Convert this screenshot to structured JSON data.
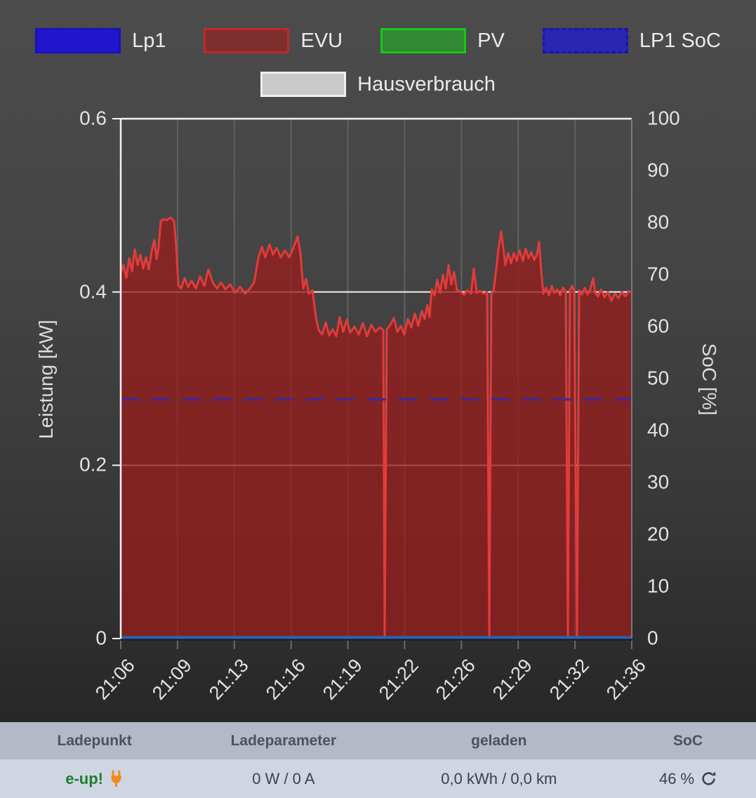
{
  "legend": {
    "rows": [
      [
        {
          "label": "Lp1",
          "fill": "#2116cd",
          "border": "#1a10bd",
          "border_style": "solid"
        },
        {
          "label": "EVU",
          "fill": "#7e2e2c",
          "border": "#bd2b27",
          "border_style": "solid"
        },
        {
          "label": "PV",
          "fill": "#2f8a33",
          "border": "#17c819",
          "border_style": "solid"
        },
        {
          "label": "LP1 SoC",
          "fill": "#2a26b4",
          "border": "#1b17a6",
          "border_style": "dashed"
        }
      ],
      [
        {
          "label": "Hausverbrauch",
          "fill": "#c9c9c9",
          "border": "#efefef",
          "border_style": "solid"
        }
      ]
    ]
  },
  "chart_data": {
    "type": "line",
    "title": "",
    "ylabel_left": "Leistung [kW]",
    "ylabel_right": "SoC [%]",
    "y_left": {
      "min": 0,
      "max": 0.6,
      "tick_labels": [
        "0.6",
        "0.4",
        "0.2",
        "0"
      ],
      "tick_values": [
        0.6,
        0.4,
        0.2,
        0
      ],
      "white_gridlines": [
        0.4,
        0.2
      ]
    },
    "y_right": {
      "min": 0,
      "max": 100,
      "tick_values": [
        100,
        90,
        80,
        70,
        60,
        50,
        40,
        30,
        20,
        10,
        0
      ]
    },
    "x_labels": [
      "21:06",
      "21:09",
      "21:13",
      "21:16",
      "21:19",
      "21:22",
      "21:26",
      "21:29",
      "21:32",
      "21:36"
    ],
    "grid": true,
    "legend_position": "top",
    "style": {
      "vgrid": "#616161",
      "white_line": "#f3efee",
      "top_border": "#f3f3f3",
      "left_border": "#f3f3f3",
      "right_border": "#7a7a7a",
      "tick": "#6a6a6a",
      "baseline": "#1c1c1c"
    },
    "series": [
      {
        "name": "EVU",
        "kind": "area-line",
        "axis": "left",
        "unit": "kW",
        "color": "#e23b3b",
        "fill": "rgba(150,30,30,0.78)",
        "points": [
          [
            0,
            0.423
          ],
          [
            0.0055,
            0.431
          ],
          [
            0.011,
            0.416
          ],
          [
            0.0165,
            0.439
          ],
          [
            0.022,
            0.424
          ],
          [
            0.0275,
            0.449
          ],
          [
            0.033,
            0.431
          ],
          [
            0.0385,
            0.443
          ],
          [
            0.044,
            0.427
          ],
          [
            0.0495,
            0.44
          ],
          [
            0.0549,
            0.426
          ],
          [
            0.0604,
            0.447
          ],
          [
            0.0659,
            0.46
          ],
          [
            0.07,
            0.438
          ],
          [
            0.0742,
            0.452
          ],
          [
            0.0783,
            0.482
          ],
          [
            0.0838,
            0.484
          ],
          [
            0.0907,
            0.483
          ],
          [
            0.0975,
            0.486
          ],
          [
            0.1044,
            0.482
          ],
          [
            0.1085,
            0.452
          ],
          [
            0.1126,
            0.408
          ],
          [
            0.1181,
            0.404
          ],
          [
            0.125,
            0.416
          ],
          [
            0.1319,
            0.406
          ],
          [
            0.1387,
            0.413
          ],
          [
            0.147,
            0.404
          ],
          [
            0.1552,
            0.418
          ],
          [
            0.1634,
            0.407
          ],
          [
            0.1717,
            0.426
          ],
          [
            0.1799,
            0.411
          ],
          [
            0.1882,
            0.404
          ],
          [
            0.1964,
            0.411
          ],
          [
            0.2047,
            0.403
          ],
          [
            0.2143,
            0.409
          ],
          [
            0.2239,
            0.399
          ],
          [
            0.2335,
            0.406
          ],
          [
            0.2431,
            0.398
          ],
          [
            0.2527,
            0.404
          ],
          [
            0.261,
            0.411
          ],
          [
            0.2692,
            0.439
          ],
          [
            0.2761,
            0.452
          ],
          [
            0.283,
            0.44
          ],
          [
            0.2912,
            0.455
          ],
          [
            0.2981,
            0.443
          ],
          [
            0.3049,
            0.451
          ],
          [
            0.3132,
            0.44
          ],
          [
            0.3214,
            0.448
          ],
          [
            0.3297,
            0.44
          ],
          [
            0.3379,
            0.451
          ],
          [
            0.3462,
            0.464
          ],
          [
            0.3516,
            0.444
          ],
          [
            0.3571,
            0.404
          ],
          [
            0.3626,
            0.415
          ],
          [
            0.3681,
            0.398
          ],
          [
            0.375,
            0.402
          ],
          [
            0.3819,
            0.371
          ],
          [
            0.3874,
            0.356
          ],
          [
            0.3942,
            0.351
          ],
          [
            0.4011,
            0.365
          ],
          [
            0.408,
            0.35
          ],
          [
            0.4148,
            0.357
          ],
          [
            0.4217,
            0.349
          ],
          [
            0.4286,
            0.371
          ],
          [
            0.4354,
            0.354
          ],
          [
            0.4423,
            0.368
          ],
          [
            0.4491,
            0.353
          ],
          [
            0.4574,
            0.36
          ],
          [
            0.4656,
            0.351
          ],
          [
            0.4739,
            0.364
          ],
          [
            0.4821,
            0.349
          ],
          [
            0.4904,
            0.362
          ],
          [
            0.4986,
            0.354
          ],
          [
            0.5069,
            0.359
          ],
          [
            0.5137,
            0.356
          ],
          [
            0.5165,
            0.003
          ],
          [
            0.5206,
            0.357
          ],
          [
            0.5275,
            0.362
          ],
          [
            0.5343,
            0.37
          ],
          [
            0.5412,
            0.354
          ],
          [
            0.548,
            0.361
          ],
          [
            0.5549,
            0.351
          ],
          [
            0.5618,
            0.369
          ],
          [
            0.5686,
            0.359
          ],
          [
            0.5755,
            0.375
          ],
          [
            0.5824,
            0.361
          ],
          [
            0.5892,
            0.378
          ],
          [
            0.5947,
            0.369
          ],
          [
            0.6002,
            0.385
          ],
          [
            0.6044,
            0.371
          ],
          [
            0.6085,
            0.403
          ],
          [
            0.614,
            0.396
          ],
          [
            0.6195,
            0.414
          ],
          [
            0.625,
            0.399
          ],
          [
            0.6305,
            0.42
          ],
          [
            0.636,
            0.404
          ],
          [
            0.6415,
            0.431
          ],
          [
            0.647,
            0.409
          ],
          [
            0.6525,
            0.423
          ],
          [
            0.658,
            0.402
          ],
          [
            0.6648,
            0.4
          ],
          [
            0.6717,
            0.397
          ],
          [
            0.6785,
            0.402
          ],
          [
            0.6854,
            0.398
          ],
          [
            0.6909,
            0.427
          ],
          [
            0.6964,
            0.399
          ],
          [
            0.7033,
            0.401
          ],
          [
            0.7102,
            0.398
          ],
          [
            0.717,
            0.4
          ],
          [
            0.7211,
            0.003
          ],
          [
            0.7253,
            0.399
          ],
          [
            0.7294,
            0.4
          ],
          [
            0.7349,
            0.427
          ],
          [
            0.739,
            0.449
          ],
          [
            0.7445,
            0.47
          ],
          [
            0.7486,
            0.451
          ],
          [
            0.7527,
            0.431
          ],
          [
            0.7582,
            0.445
          ],
          [
            0.7637,
            0.433
          ],
          [
            0.7692,
            0.445
          ],
          [
            0.7747,
            0.436
          ],
          [
            0.7802,
            0.448
          ],
          [
            0.7871,
            0.436
          ],
          [
            0.7925,
            0.45
          ],
          [
            0.798,
            0.439
          ],
          [
            0.8035,
            0.446
          ],
          [
            0.809,
            0.437
          ],
          [
            0.8145,
            0.443
          ],
          [
            0.8187,
            0.458
          ],
          [
            0.8228,
            0.424
          ],
          [
            0.8269,
            0.398
          ],
          [
            0.8324,
            0.405
          ],
          [
            0.8379,
            0.396
          ],
          [
            0.8434,
            0.407
          ],
          [
            0.8489,
            0.399
          ],
          [
            0.8544,
            0.403
          ],
          [
            0.8599,
            0.396
          ],
          [
            0.8654,
            0.405
          ],
          [
            0.8709,
            0.4
          ],
          [
            0.875,
            0.003
          ],
          [
            0.8791,
            0.403
          ],
          [
            0.8832,
            0.407
          ],
          [
            0.8873,
            0.4
          ],
          [
            0.8929,
            0.003
          ],
          [
            0.897,
            0.402
          ],
          [
            0.9025,
            0.397
          ],
          [
            0.908,
            0.405
          ],
          [
            0.9135,
            0.397
          ],
          [
            0.919,
            0.403
          ],
          [
            0.9245,
            0.416
          ],
          [
            0.9286,
            0.399
          ],
          [
            0.9341,
            0.395
          ],
          [
            0.9396,
            0.403
          ],
          [
            0.9464,
            0.394
          ],
          [
            0.9533,
            0.4
          ],
          [
            0.9602,
            0.39
          ],
          [
            0.967,
            0.398
          ],
          [
            0.9739,
            0.393
          ],
          [
            0.9808,
            0.4
          ],
          [
            0.9876,
            0.395
          ],
          [
            0.9945,
            0.401
          ],
          [
            1,
            0.399
          ]
        ]
      },
      {
        "name": "LP1 SoC",
        "kind": "hline-dashed",
        "axis": "right",
        "unit": "%",
        "color": "#3a2aa0",
        "value": 46,
        "dash": [
          26,
          18
        ]
      },
      {
        "name": "Lp1",
        "kind": "hline",
        "axis": "left",
        "unit": "kW",
        "color": "#2565b5",
        "value": 0
      },
      {
        "name": "PV",
        "kind": "hidden",
        "axis": "left",
        "unit": "kW",
        "value": 0
      },
      {
        "name": "Hausverbrauch",
        "kind": "hidden",
        "axis": "left",
        "unit": "kW"
      }
    ]
  },
  "table": {
    "headers": [
      "Ladepunkt",
      "Ladeparameter",
      "geladen",
      "SoC"
    ],
    "rows": [
      {
        "ladepunkt": "e-up!",
        "plugged": true,
        "ladeparameter": "0 W / 0 A",
        "geladen": "0,0 kWh / 0,0 km",
        "soc": "46 %"
      }
    ],
    "colors": {
      "header_bg": "#b3b9c6",
      "row_bg": "#cfd5e2",
      "name_green": "#1e7c2f",
      "plug_orange": "#f08a1d"
    }
  }
}
